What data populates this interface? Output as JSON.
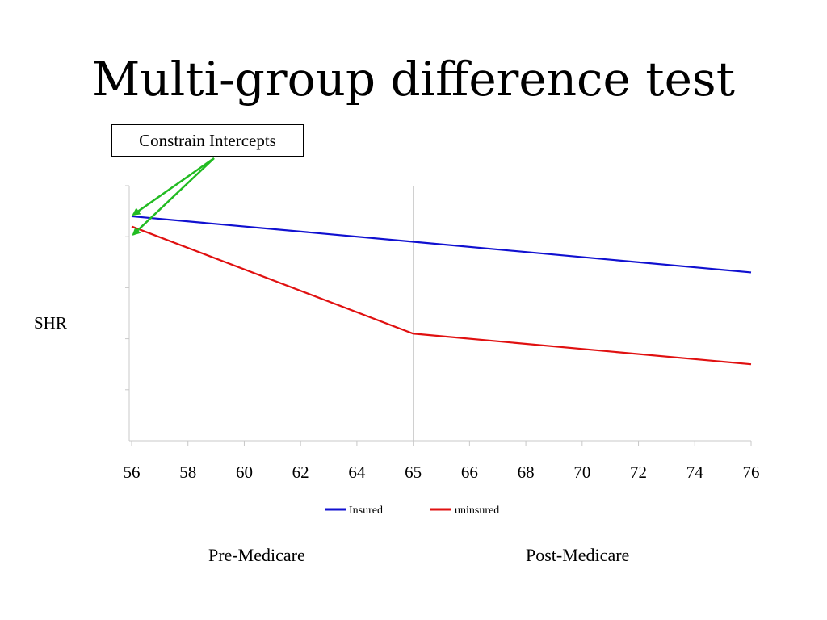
{
  "slide": {
    "title": "Multi-group difference test",
    "callout": "Constrain Intercepts",
    "regions": [
      "Pre-Medicare",
      "Post-Medicare"
    ]
  },
  "chart_data": {
    "type": "line",
    "ylabel": "SHR",
    "x_ticks": [
      "56",
      "58",
      "60",
      "62",
      "64",
      "65",
      "66",
      "68",
      "70",
      "72",
      "74",
      "76"
    ],
    "vertical_divider_at_tick": "65",
    "y_tick_count": 5,
    "ylim": [
      0,
      5
    ],
    "series": [
      {
        "name": "Insured",
        "color": "#1010d0",
        "points": [
          [
            "56",
            4.4
          ],
          [
            "65",
            3.9
          ],
          [
            "76",
            3.3
          ]
        ]
      },
      {
        "name": "uninsured",
        "color": "#e01010",
        "points": [
          [
            "56",
            4.2
          ],
          [
            "65",
            2.1
          ],
          [
            "76",
            1.5
          ]
        ]
      }
    ],
    "legend_position": "bottom",
    "arrow_color": "#22bb22",
    "grid": false
  }
}
